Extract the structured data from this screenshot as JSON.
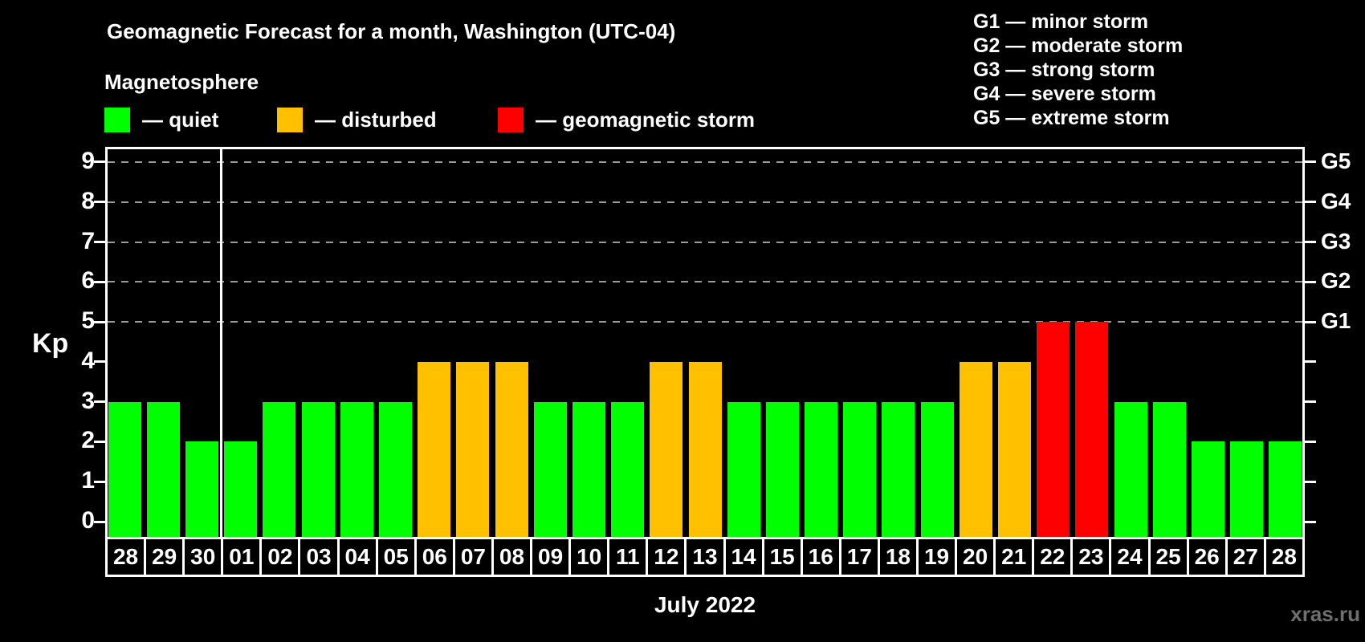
{
  "header": {
    "title": "Geomagnetic Forecast for a month, Washington (UTC-04)",
    "legend_title": "Magnetosphere",
    "legend_items": [
      {
        "name": "quiet",
        "label": "— quiet",
        "color": "#00ff00"
      },
      {
        "name": "disturbed",
        "label": "— disturbed",
        "color": "#ffc000"
      },
      {
        "name": "storm",
        "label": "— geomagnetic storm",
        "color": "#ff0000"
      }
    ],
    "g_scale_legend": [
      "G1 — minor storm",
      "G2 — moderate storm",
      "G3 — strong storm",
      "G4 — severe storm",
      "G5 — extreme storm"
    ]
  },
  "chart_data": {
    "type": "bar",
    "title": "Geomagnetic Forecast for a month, Washington (UTC-04)",
    "xlabel": "July 2022",
    "ylabel": "Kp",
    "ylim": [
      0,
      9
    ],
    "yticks": [
      0,
      1,
      2,
      3,
      4,
      5,
      6,
      7,
      8,
      9
    ],
    "gridlines_at": [
      5,
      6,
      7,
      8,
      9
    ],
    "grid": "dashed",
    "right_axis": [
      {
        "label": "G1",
        "kp": 5
      },
      {
        "label": "G2",
        "kp": 6
      },
      {
        "label": "G3",
        "kp": 7
      },
      {
        "label": "G4",
        "kp": 8
      },
      {
        "label": "G5",
        "kp": 9
      }
    ],
    "status_colors": {
      "quiet": "#00ff00",
      "disturbed": "#ffc000",
      "storm": "#ff0000"
    },
    "month_separator_after_index": 2,
    "days": [
      {
        "day": "28",
        "kp": 3,
        "status": "quiet"
      },
      {
        "day": "29",
        "kp": 3,
        "status": "quiet"
      },
      {
        "day": "30",
        "kp": 2,
        "status": "quiet"
      },
      {
        "day": "01",
        "kp": 2,
        "status": "quiet"
      },
      {
        "day": "02",
        "kp": 3,
        "status": "quiet"
      },
      {
        "day": "03",
        "kp": 3,
        "status": "quiet"
      },
      {
        "day": "04",
        "kp": 3,
        "status": "quiet"
      },
      {
        "day": "05",
        "kp": 3,
        "status": "quiet"
      },
      {
        "day": "06",
        "kp": 4,
        "status": "disturbed"
      },
      {
        "day": "07",
        "kp": 4,
        "status": "disturbed"
      },
      {
        "day": "08",
        "kp": 4,
        "status": "disturbed"
      },
      {
        "day": "09",
        "kp": 3,
        "status": "quiet"
      },
      {
        "day": "10",
        "kp": 3,
        "status": "quiet"
      },
      {
        "day": "11",
        "kp": 3,
        "status": "quiet"
      },
      {
        "day": "12",
        "kp": 4,
        "status": "disturbed"
      },
      {
        "day": "13",
        "kp": 4,
        "status": "disturbed"
      },
      {
        "day": "14",
        "kp": 3,
        "status": "quiet"
      },
      {
        "day": "15",
        "kp": 3,
        "status": "quiet"
      },
      {
        "day": "16",
        "kp": 3,
        "status": "quiet"
      },
      {
        "day": "17",
        "kp": 3,
        "status": "quiet"
      },
      {
        "day": "18",
        "kp": 3,
        "status": "quiet"
      },
      {
        "day": "19",
        "kp": 3,
        "status": "quiet"
      },
      {
        "day": "20",
        "kp": 4,
        "status": "disturbed"
      },
      {
        "day": "21",
        "kp": 4,
        "status": "disturbed"
      },
      {
        "day": "22",
        "kp": 5,
        "status": "storm"
      },
      {
        "day": "23",
        "kp": 5,
        "status": "storm"
      },
      {
        "day": "24",
        "kp": 3,
        "status": "quiet"
      },
      {
        "day": "25",
        "kp": 3,
        "status": "quiet"
      },
      {
        "day": "26",
        "kp": 2,
        "status": "quiet"
      },
      {
        "day": "27",
        "kp": 2,
        "status": "quiet"
      },
      {
        "day": "28",
        "kp": 2,
        "status": "quiet"
      }
    ]
  },
  "footer": {
    "watermark": "xras.ru"
  }
}
